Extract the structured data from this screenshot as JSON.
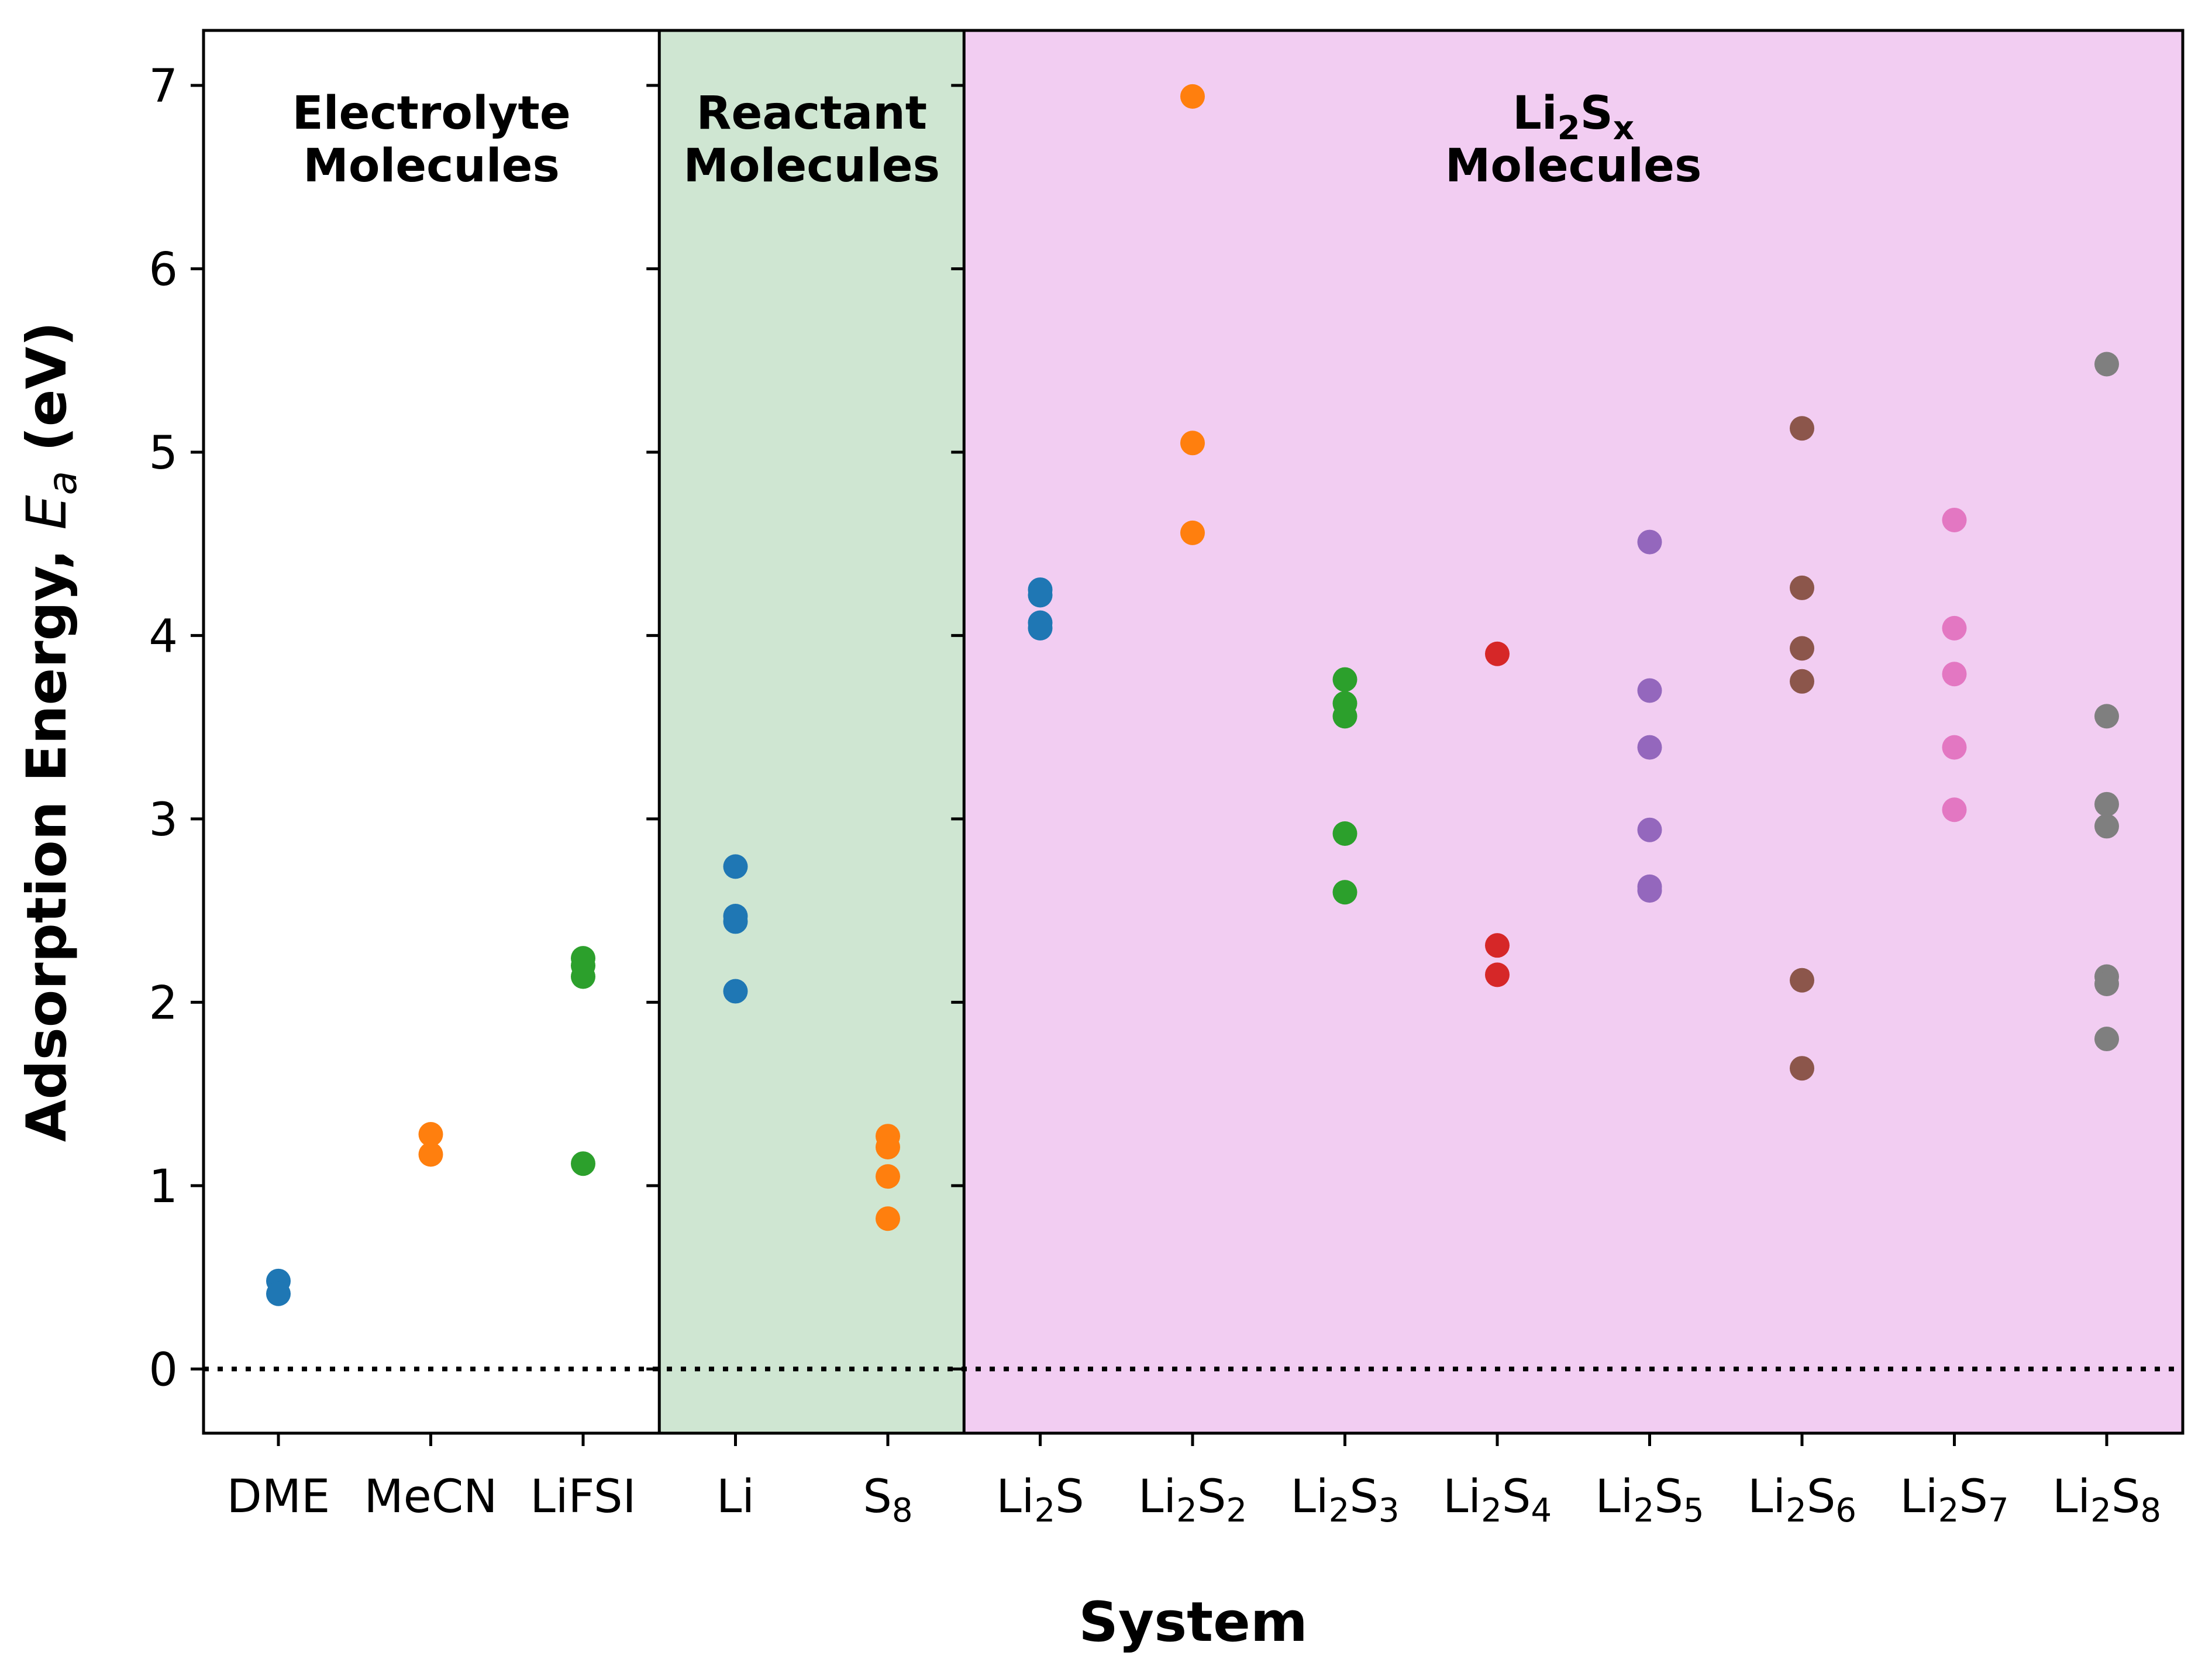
{
  "chart_data": {
    "type": "scatter",
    "title": "",
    "xlabel": "System",
    "ylabel_prefix": "Adsorption Energy, ",
    "ylabel_var": "E",
    "ylabel_sub": "a",
    "ylabel_unit": " (eV)",
    "ylim": [
      -0.35,
      7.3
    ],
    "yticks": [
      "0",
      "1",
      "2",
      "3",
      "4",
      "5",
      "6",
      "7"
    ],
    "reference_line_y": 0,
    "regions": [
      {
        "title_lines": [
          "Electrolyte",
          "Molecules"
        ],
        "color": "#ffffff",
        "start_index": 0,
        "end_index": 2
      },
      {
        "title_lines": [
          "Reactant",
          "Molecules"
        ],
        "color": "#cfe6d2",
        "start_index": 3,
        "end_index": 4
      },
      {
        "title_main": "Li",
        "title_sub1": "2",
        "title_mid": "S",
        "title_sub2": "x",
        "title_line2": "Molecules",
        "color": "#f2cdf2",
        "start_index": 5,
        "end_index": 12
      }
    ],
    "categories": [
      {
        "label": "DME",
        "color": "#1f77b4",
        "values": [
          0.48,
          0.41
        ]
      },
      {
        "label": "MeCN",
        "color": "#ff7f0e",
        "values": [
          1.28,
          1.17
        ]
      },
      {
        "label": "LiFSI",
        "color": "#2ca02c",
        "values": [
          2.24,
          2.2,
          2.14,
          1.12
        ]
      },
      {
        "label": "Li",
        "color": "#1f77b4",
        "values": [
          2.74,
          2.47,
          2.44,
          2.06
        ]
      },
      {
        "label": "S",
        "sub": "8",
        "color": "#ff7f0e",
        "values": [
          1.27,
          1.21,
          1.05,
          0.82
        ]
      },
      {
        "label": "Li",
        "sub": "2",
        "label2": "S",
        "color": "#1f77b4",
        "values": [
          4.25,
          4.22,
          4.07,
          4.04
        ]
      },
      {
        "label": "Li",
        "sub": "2",
        "label2": "S",
        "sub2": "2",
        "color": "#ff7f0e",
        "values": [
          6.94,
          5.05,
          4.56
        ]
      },
      {
        "label": "Li",
        "sub": "2",
        "label2": "S",
        "sub2": "3",
        "color": "#2ca02c",
        "values": [
          3.76,
          3.63,
          3.56,
          2.92,
          2.6
        ]
      },
      {
        "label": "Li",
        "sub": "2",
        "label2": "S",
        "sub2": "4",
        "color": "#d62728",
        "values": [
          3.9,
          2.31,
          2.15
        ]
      },
      {
        "label": "Li",
        "sub": "2",
        "label2": "S",
        "sub2": "5",
        "color": "#9467bd",
        "values": [
          4.51,
          3.7,
          3.39,
          2.94,
          2.63,
          2.61
        ]
      },
      {
        "label": "Li",
        "sub": "2",
        "label2": "S",
        "sub2": "6",
        "color": "#8c564b",
        "values": [
          5.13,
          4.26,
          3.93,
          3.75,
          2.12,
          1.64
        ]
      },
      {
        "label": "Li",
        "sub": "2",
        "label2": "S",
        "sub2": "7",
        "color": "#e377c2",
        "values": [
          4.63,
          4.04,
          3.79,
          3.39,
          3.05
        ]
      },
      {
        "label": "Li",
        "sub": "2",
        "label2": "S",
        "sub2": "8",
        "color": "#7f7f7f",
        "values": [
          5.48,
          3.56,
          3.08,
          2.96,
          2.14,
          2.1,
          1.8
        ]
      }
    ]
  }
}
